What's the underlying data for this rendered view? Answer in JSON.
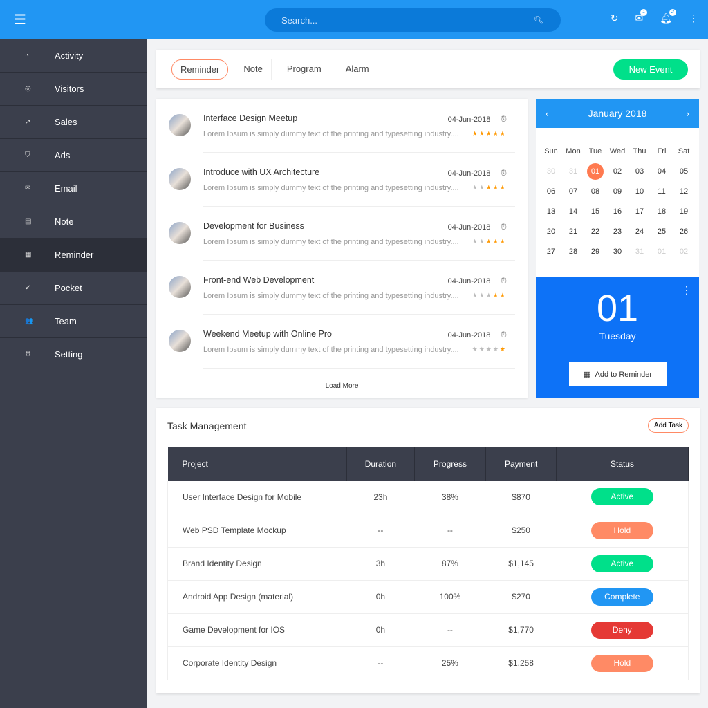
{
  "topbar": {
    "search_placeholder": "Search...",
    "badges": {
      "messages": "1",
      "notifications": "2"
    }
  },
  "sidebar": {
    "items": [
      {
        "label": "Activity",
        "icon": "activity-icon",
        "glyph": "◔"
      },
      {
        "label": "Visitors",
        "icon": "fingerprint-icon",
        "glyph": "◎"
      },
      {
        "label": "Sales",
        "icon": "trending-icon",
        "glyph": "↗"
      },
      {
        "label": "Ads",
        "icon": "shield-icon",
        "glyph": "⛉"
      },
      {
        "label": "Email",
        "icon": "mail-icon",
        "glyph": "✉"
      },
      {
        "label": "Note",
        "icon": "note-icon",
        "glyph": "▤"
      },
      {
        "label": "Reminder",
        "icon": "calendar-icon",
        "glyph": "▦",
        "active": true
      },
      {
        "label": "Pocket",
        "icon": "check-circle-icon",
        "glyph": "✔"
      },
      {
        "label": "Team",
        "icon": "people-icon",
        "glyph": "👥"
      },
      {
        "label": "Setting",
        "icon": "gear-icon",
        "glyph": "⚙"
      }
    ]
  },
  "tabs": {
    "items": [
      "Reminder",
      "Note",
      "Program",
      "Alarm"
    ],
    "new_event": "New Event"
  },
  "events": {
    "items": [
      {
        "title": "Interface Design Meetup",
        "desc": "Lorem Ipsum is simply dummy text of the printing and typesetting industry....",
        "date": "04-Jun-2018",
        "rating": 5
      },
      {
        "title": "Introduce with UX Architecture",
        "desc": "Lorem Ipsum is simply dummy text of the printing and typesetting industry....",
        "date": "04-Jun-2018",
        "rating": 3
      },
      {
        "title": "Development for Business",
        "desc": "Lorem Ipsum is simply dummy text of the printing and typesetting industry....",
        "date": "04-Jun-2018",
        "rating": 3
      },
      {
        "title": "Front-end Web Development",
        "desc": "Lorem Ipsum is simply dummy text of the printing and typesetting industry....",
        "date": "04-Jun-2018",
        "rating": 2
      },
      {
        "title": "Weekend Meetup with Online Pro",
        "desc": "Lorem Ipsum is simply dummy text of the printing and typesetting industry....",
        "date": "04-Jun-2018",
        "rating": 1
      }
    ],
    "load_more": "Load More"
  },
  "calendar": {
    "month": "January 2018",
    "dows": [
      "Sun",
      "Mon",
      "Tue",
      "Wed",
      "Thu",
      "Fri",
      "Sat"
    ],
    "days": [
      "30",
      "31",
      "01",
      "02",
      "03",
      "04",
      "05",
      "06",
      "07",
      "08",
      "09",
      "10",
      "11",
      "12",
      "13",
      "14",
      "15",
      "16",
      "17",
      "18",
      "19",
      "20",
      "21",
      "22",
      "23",
      "24",
      "25",
      "26",
      "27",
      "28",
      "29",
      "30",
      "31",
      "01",
      "02"
    ],
    "muted_leading": 2,
    "selected": "01",
    "big_day": "01",
    "weekday": "Tuesday",
    "add_button": "Add to Reminder"
  },
  "tasks": {
    "title": "Task Management",
    "add_button": "Add Task",
    "columns": [
      "Project",
      "Duration",
      "Progress",
      "Payment",
      "Status"
    ],
    "rows": [
      {
        "project": "User Interface Design for Mobile",
        "duration": "23h",
        "progress": "38%",
        "payment": "$870",
        "status": "Active"
      },
      {
        "project": "Web PSD Template Mockup",
        "duration": "--",
        "progress": "--",
        "payment": "$250",
        "status": "Hold"
      },
      {
        "project": "Brand Identity Design",
        "duration": "3h",
        "progress": "87%",
        "payment": "$1,145",
        "status": "Active"
      },
      {
        "project": "Android App Design (material)",
        "duration": "0h",
        "progress": "100%",
        "payment": "$270",
        "status": "Complete"
      },
      {
        "project": "Game Development for IOS",
        "duration": "0h",
        "progress": "--",
        "payment": "$1,770",
        "status": "Deny"
      },
      {
        "project": "Corporate Identity Design",
        "duration": "--",
        "progress": "25%",
        "payment": "$1.258",
        "status": "Hold"
      }
    ]
  },
  "colors": {
    "Active": "#00e08a",
    "Hold": "#ff8a65",
    "Complete": "#2196f3",
    "Deny": "#e53935",
    "primary": "#2196f3"
  }
}
